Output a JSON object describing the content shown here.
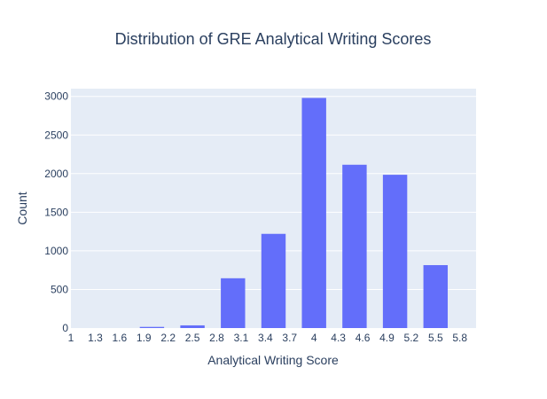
{
  "chart_data": {
    "type": "bar",
    "title": "Distribution of GRE Analytical Writing Scores",
    "xlabel": "Analytical Writing Score",
    "ylabel": "Count",
    "x": [
      2.0,
      2.5,
      3.0,
      3.5,
      4.0,
      4.5,
      5.0,
      5.5
    ],
    "values": [
      15,
      35,
      645,
      1220,
      2980,
      2115,
      1985,
      815
    ],
    "bin_width": 0.3,
    "xlim": [
      1.0,
      6.0
    ],
    "ylim": [
      0,
      3100
    ],
    "x_tick_values": [
      1.0,
      1.3,
      1.6,
      1.9,
      2.2,
      2.5,
      2.8,
      3.1,
      3.4,
      3.7,
      4.0,
      4.3,
      4.6,
      4.9,
      5.2,
      5.5,
      5.8
    ],
    "x_tick_labels": [
      "1",
      "1.3",
      "1.6",
      "1.9",
      "2.2",
      "2.5",
      "2.8",
      "3.1",
      "3.4",
      "3.7",
      "4",
      "4.3",
      "4.6",
      "4.9",
      "5.2",
      "5.5",
      "5.8"
    ],
    "y_tick_values": [
      0,
      500,
      1000,
      1500,
      2000,
      2500,
      3000
    ],
    "y_tick_labels": [
      "0",
      "500",
      "1000",
      "1500",
      "2000",
      "2500",
      "3000"
    ],
    "grid": true,
    "legend": "none",
    "bar_color": "#636efa",
    "plot_bg": "#e5ecf6",
    "grid_color": "#ffffff",
    "text_color": "#2a3f5f"
  }
}
